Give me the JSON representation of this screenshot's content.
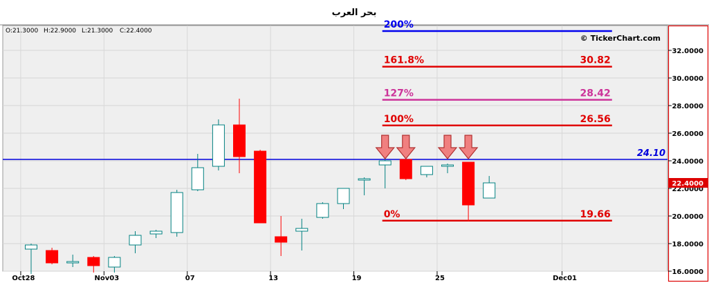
{
  "window": {
    "title": "بحر العرب",
    "watermark": "© TickerChart.com"
  },
  "ohlc_readout": {
    "open": "O:21.3000",
    "high": "H:22.9000",
    "low": "L:21.3000",
    "close": "C:22.4000"
  },
  "colors": {
    "plot_background": "#efefef",
    "up_candle_border": "#008080",
    "down_candle": "#ff0000",
    "fib_red": "#e00000",
    "fib_127": "#cc3399",
    "fib_200": "#0000ee",
    "horizontal_line": "#0000dd",
    "arrow_fill": "#f08080",
    "arrow_stroke": "#b03030",
    "frame_red": "#dd0000"
  },
  "chart_data": {
    "type": "candlestick",
    "x_tick_labels": [
      {
        "label": "Oct28",
        "index": 0
      },
      {
        "label": "Nov03",
        "index": 4
      },
      {
        "label": "07",
        "index": 8
      },
      {
        "label": "13",
        "index": 12
      },
      {
        "label": "19",
        "index": 16
      },
      {
        "label": "25",
        "index": 20
      },
      {
        "label": "Dec01",
        "index": 26
      }
    ],
    "y_axis": {
      "range": [
        16.0,
        33.8
      ],
      "ticks": [
        "16.0000",
        "18.0000",
        "20.0000",
        "22.0000",
        "24.0000",
        "26.0000",
        "28.0000",
        "30.0000",
        "32.0000"
      ],
      "tick_values": [
        16,
        18,
        20,
        22,
        24,
        26,
        28,
        30,
        32
      ],
      "side": "right",
      "grid": "horizontal"
    },
    "last_price_label": {
      "text": "22.4000",
      "value": 22.4
    },
    "candles": [
      {
        "index": 0,
        "open": 17.6,
        "high": 18.0,
        "low": 15.8,
        "close": 17.9
      },
      {
        "index": 1,
        "open": 17.5,
        "high": 17.7,
        "low": 16.5,
        "close": 16.6
      },
      {
        "index": 2,
        "open": 16.6,
        "high": 17.2,
        "low": 16.3,
        "close": 16.7
      },
      {
        "index": 3,
        "open": 17.0,
        "high": 17.1,
        "low": 15.9,
        "close": 16.4
      },
      {
        "index": 4,
        "open": 16.3,
        "high": 17.1,
        "low": 15.9,
        "close": 17.0
      },
      {
        "index": 5,
        "open": 17.9,
        "high": 18.9,
        "low": 17.3,
        "close": 18.6
      },
      {
        "index": 6,
        "open": 18.7,
        "high": 19.0,
        "low": 18.4,
        "close": 18.9
      },
      {
        "index": 7,
        "open": 18.8,
        "high": 21.9,
        "low": 18.5,
        "close": 21.7
      },
      {
        "index": 8,
        "open": 21.9,
        "high": 24.5,
        "low": 21.8,
        "close": 23.5
      },
      {
        "index": 9,
        "open": 23.6,
        "high": 27.0,
        "low": 23.3,
        "close": 26.6
      },
      {
        "index": 10,
        "open": 26.6,
        "high": 28.5,
        "low": 23.1,
        "close": 24.3
      },
      {
        "index": 11,
        "open": 24.7,
        "high": 24.8,
        "low": 19.5,
        "close": 19.5
      },
      {
        "index": 12,
        "open": 18.5,
        "high": 20.0,
        "low": 17.1,
        "close": 18.1
      },
      {
        "index": 13,
        "open": 18.9,
        "high": 19.8,
        "low": 17.5,
        "close": 19.1
      },
      {
        "index": 14,
        "open": 19.9,
        "high": 21.0,
        "low": 19.8,
        "close": 20.9
      },
      {
        "index": 15,
        "open": 20.9,
        "high": 22.0,
        "low": 20.5,
        "close": 22.0
      },
      {
        "index": 16,
        "open": 22.6,
        "high": 22.8,
        "low": 21.5,
        "close": 22.7
      },
      {
        "index": 17,
        "open": 23.7,
        "high": 24.4,
        "low": 22.0,
        "close": 24.0
      },
      {
        "index": 18,
        "open": 24.1,
        "high": 24.1,
        "low": 22.6,
        "close": 22.7
      },
      {
        "index": 19,
        "open": 23.0,
        "high": 23.6,
        "low": 22.8,
        "close": 23.6
      },
      {
        "index": 20,
        "open": 23.6,
        "high": 23.8,
        "low": 23.1,
        "close": 23.7
      },
      {
        "index": 21,
        "open": 23.9,
        "high": 23.9,
        "low": 19.6,
        "close": 20.8
      },
      {
        "index": 22,
        "open": 21.3,
        "high": 22.9,
        "low": 21.3,
        "close": 22.4
      }
    ],
    "fibonacci_levels": [
      {
        "label": "200%",
        "value": 33.4,
        "value_text": "",
        "color": "#0000ee"
      },
      {
        "label": "161.8%",
        "value": 30.82,
        "value_text": "30.82",
        "color": "#e00000"
      },
      {
        "label": "127%",
        "value": 28.42,
        "value_text": "28.42",
        "color": "#cc3399"
      },
      {
        "label": "100%",
        "value": 26.56,
        "value_text": "26.56",
        "color": "#e00000"
      },
      {
        "label": "0%",
        "value": 19.66,
        "value_text": "19.66",
        "color": "#e00000"
      }
    ],
    "fibonacci_x_range": [
      17.0,
      28.0
    ],
    "horizontal_line": {
      "value": 24.1,
      "label": "24.10"
    },
    "arrows": [
      {
        "index": 17,
        "tip_value": 24.0
      },
      {
        "index": 18,
        "tip_value": 24.0
      },
      {
        "index": 20,
        "tip_value": 24.0
      },
      {
        "index": 21,
        "tip_value": 24.0
      }
    ]
  }
}
